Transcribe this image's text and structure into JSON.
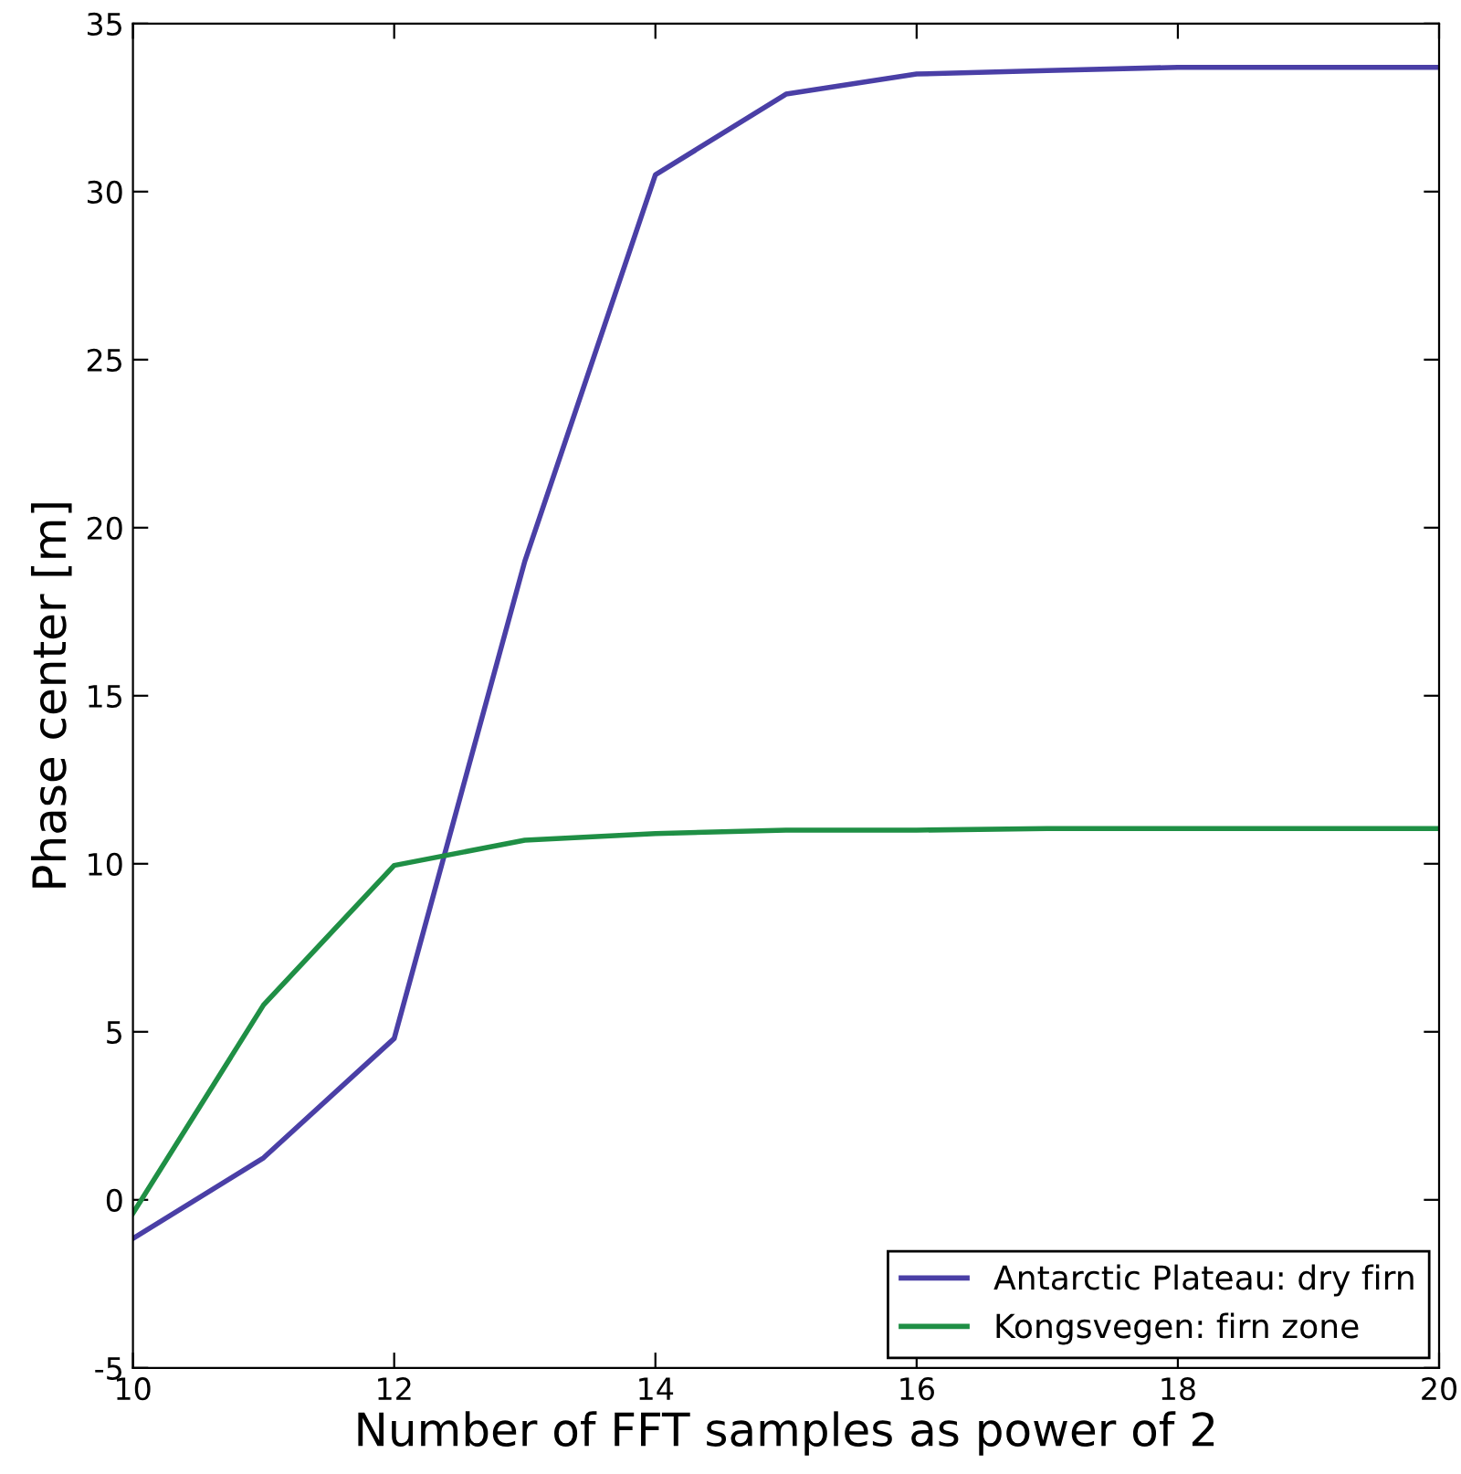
{
  "chart_data": {
    "type": "line",
    "xlabel": "Number of FFT samples as power of 2",
    "ylabel": "Phase center [m]",
    "x": [
      10,
      11,
      12,
      13,
      14,
      15,
      16,
      17,
      18,
      19,
      20
    ],
    "series": [
      {
        "name": "Antarctic Plateau: dry firn",
        "color": "#4a3fa6",
        "values": [
          -1.15,
          1.25,
          4.8,
          19.0,
          30.5,
          32.9,
          33.5,
          33.6,
          33.7,
          33.7,
          33.7
        ]
      },
      {
        "name": "Kongsvegen: firn zone",
        "color": "#1f8f45",
        "values": [
          -0.4,
          5.8,
          9.95,
          10.7,
          10.9,
          11.0,
          11.0,
          11.05,
          11.05,
          11.05,
          11.05
        ]
      }
    ],
    "xlim": [
      10,
      20
    ],
    "ylim": [
      -5,
      35
    ],
    "xticks": [
      10,
      12,
      14,
      16,
      18,
      20
    ],
    "yticks": [
      -5,
      0,
      5,
      10,
      15,
      20,
      25,
      30,
      35
    ],
    "grid": false,
    "legend": "bottom right",
    "marker": "none",
    "line_style": "solid"
  }
}
